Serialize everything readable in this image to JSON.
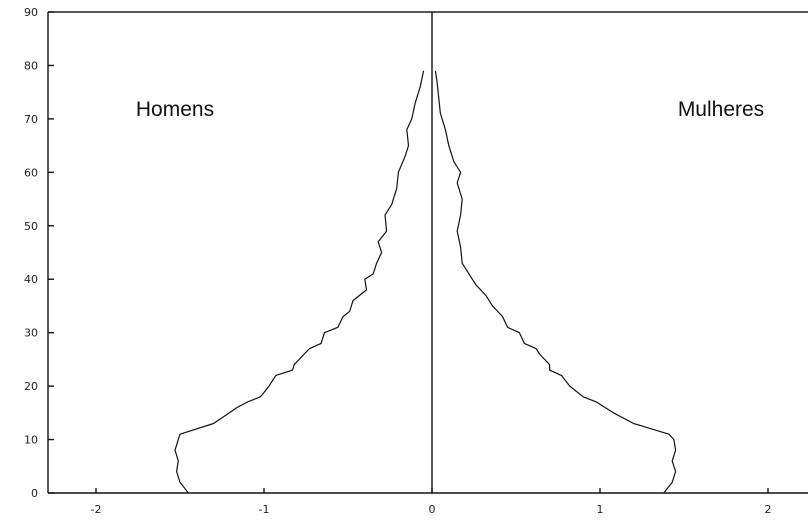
{
  "chart_data": {
    "type": "line",
    "title": "",
    "xlabel": "",
    "ylabel": "",
    "xlim": [
      -2.2,
      2.2
    ],
    "ylim": [
      0,
      90
    ],
    "x_ticks": [
      {
        "value": -2,
        "label": "-2"
      },
      {
        "value": -1,
        "label": "-1"
      },
      {
        "value": 0,
        "label": "0"
      },
      {
        "value": 1,
        "label": "1"
      },
      {
        "value": 2,
        "label": "2"
      }
    ],
    "y_ticks": [
      {
        "value": 0,
        "label": "0"
      },
      {
        "value": 10,
        "label": "10"
      },
      {
        "value": 20,
        "label": "20"
      },
      {
        "value": 30,
        "label": "30"
      },
      {
        "value": 40,
        "label": "40"
      },
      {
        "value": 50,
        "label": "50"
      },
      {
        "value": 60,
        "label": "60"
      },
      {
        "value": 70,
        "label": "70"
      },
      {
        "value": 80,
        "label": "80"
      },
      {
        "value": 90,
        "label": "90"
      }
    ],
    "labels": {
      "left_group": "Homens",
      "right_group": "Mulheres"
    },
    "series": [
      {
        "name": "Homens",
        "color": "#111111",
        "points": [
          [
            -1.45,
            0
          ],
          [
            -1.5,
            2
          ],
          [
            -1.52,
            4
          ],
          [
            -1.51,
            6
          ],
          [
            -1.53,
            8
          ],
          [
            -1.51,
            10
          ],
          [
            -1.5,
            11
          ],
          [
            -1.3,
            13
          ],
          [
            -1.16,
            16
          ],
          [
            -1.1,
            17
          ],
          [
            -1.02,
            18
          ],
          [
            -0.97,
            20
          ],
          [
            -0.93,
            22
          ],
          [
            -0.83,
            23
          ],
          [
            -0.82,
            24
          ],
          [
            -0.76,
            26
          ],
          [
            -0.73,
            27
          ],
          [
            -0.66,
            28
          ],
          [
            -0.64,
            30
          ],
          [
            -0.56,
            31
          ],
          [
            -0.53,
            33
          ],
          [
            -0.49,
            34
          ],
          [
            -0.47,
            36
          ],
          [
            -0.39,
            38
          ],
          [
            -0.4,
            40
          ],
          [
            -0.35,
            41
          ],
          [
            -0.33,
            43
          ],
          [
            -0.3,
            45
          ],
          [
            -0.32,
            47
          ],
          [
            -0.27,
            49
          ],
          [
            -0.28,
            52
          ],
          [
            -0.24,
            54
          ],
          [
            -0.21,
            57
          ],
          [
            -0.2,
            60
          ],
          [
            -0.16,
            63
          ],
          [
            -0.14,
            65
          ],
          [
            -0.15,
            68
          ],
          [
            -0.12,
            70
          ],
          [
            -0.1,
            73
          ],
          [
            -0.07,
            76
          ],
          [
            -0.05,
            79
          ]
        ]
      },
      {
        "name": "Mulheres",
        "color": "#111111",
        "points": [
          [
            1.38,
            0
          ],
          [
            1.43,
            2
          ],
          [
            1.45,
            4
          ],
          [
            1.43,
            6
          ],
          [
            1.45,
            8
          ],
          [
            1.44,
            10
          ],
          [
            1.41,
            11
          ],
          [
            1.2,
            13
          ],
          [
            1.08,
            15
          ],
          [
            0.98,
            17
          ],
          [
            0.9,
            18
          ],
          [
            0.82,
            20
          ],
          [
            0.77,
            22
          ],
          [
            0.7,
            23
          ],
          [
            0.7,
            24
          ],
          [
            0.64,
            26
          ],
          [
            0.62,
            27
          ],
          [
            0.55,
            28
          ],
          [
            0.52,
            30
          ],
          [
            0.45,
            31
          ],
          [
            0.42,
            33
          ],
          [
            0.36,
            35
          ],
          [
            0.32,
            37
          ],
          [
            0.26,
            39
          ],
          [
            0.22,
            41
          ],
          [
            0.18,
            43
          ],
          [
            0.17,
            46
          ],
          [
            0.15,
            49
          ],
          [
            0.17,
            52
          ],
          [
            0.18,
            55
          ],
          [
            0.15,
            58
          ],
          [
            0.17,
            60
          ],
          [
            0.13,
            62
          ],
          [
            0.1,
            65
          ],
          [
            0.08,
            68
          ],
          [
            0.05,
            71
          ],
          [
            0.04,
            74
          ],
          [
            0.03,
            77
          ],
          [
            0.02,
            79
          ]
        ]
      }
    ],
    "grid": false
  }
}
